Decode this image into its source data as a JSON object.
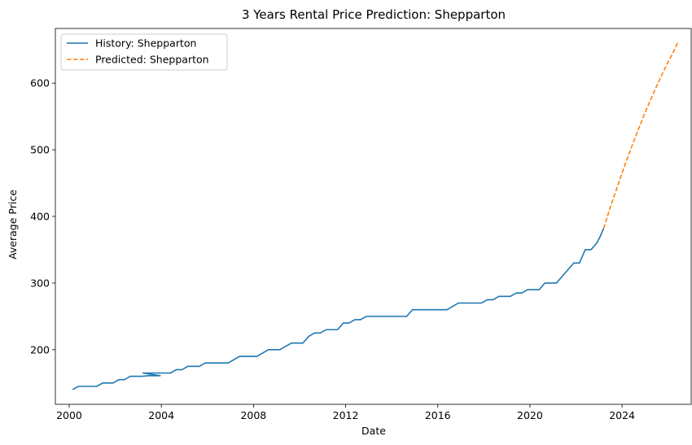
{
  "chart_data": {
    "type": "line",
    "title": "3 Years Rental Price Prediction: Shepparton",
    "xlabel": "Date",
    "ylabel": "Average Price",
    "x_type": "year",
    "xlim": [
      1999.4,
      2027.0
    ],
    "ylim": [
      118,
      682
    ],
    "xticks": [
      2000,
      2004,
      2008,
      2012,
      2016,
      2020,
      2024
    ],
    "yticks": [
      200,
      300,
      400,
      500,
      600
    ],
    "grid": false,
    "legend_position": "top-left",
    "series": [
      {
        "name": "History: Shepparton",
        "color": "#1f77b4",
        "dash": "solid",
        "points": [
          [
            2000.15,
            140
          ],
          [
            2000.4,
            145
          ],
          [
            2001.2,
            145
          ],
          [
            2001.45,
            150
          ],
          [
            2001.9,
            150
          ],
          [
            2002.15,
            155
          ],
          [
            2002.4,
            155
          ],
          [
            2002.65,
            160
          ],
          [
            2003.15,
            160
          ],
          [
            2003.45,
            161
          ],
          [
            2003.95,
            161
          ],
          [
            2003.2,
            165
          ],
          [
            2004.4,
            165
          ],
          [
            2004.65,
            170
          ],
          [
            2004.9,
            170
          ],
          [
            2005.15,
            175
          ],
          [
            2005.65,
            175
          ],
          [
            2005.9,
            180
          ],
          [
            2006.9,
            180
          ],
          [
            2007.15,
            185
          ],
          [
            2007.4,
            190
          ],
          [
            2008.15,
            190
          ],
          [
            2008.65,
            200
          ],
          [
            2009.15,
            200
          ],
          [
            2009.4,
            205
          ],
          [
            2009.65,
            210
          ],
          [
            2010.15,
            210
          ],
          [
            2010.4,
            220
          ],
          [
            2010.65,
            225
          ],
          [
            2010.9,
            225
          ],
          [
            2011.15,
            230
          ],
          [
            2011.65,
            230
          ],
          [
            2011.9,
            240
          ],
          [
            2012.15,
            240
          ],
          [
            2012.4,
            245
          ],
          [
            2012.65,
            245
          ],
          [
            2012.9,
            250
          ],
          [
            2014.65,
            250
          ],
          [
            2014.9,
            260
          ],
          [
            2016.4,
            260
          ],
          [
            2016.65,
            265
          ],
          [
            2016.9,
            270
          ],
          [
            2017.9,
            270
          ],
          [
            2018.15,
            275
          ],
          [
            2018.4,
            275
          ],
          [
            2018.65,
            280
          ],
          [
            2019.15,
            280
          ],
          [
            2019.4,
            285
          ],
          [
            2019.65,
            285
          ],
          [
            2019.9,
            290
          ],
          [
            2020.4,
            290
          ],
          [
            2020.65,
            300
          ],
          [
            2021.15,
            300
          ],
          [
            2021.4,
            310
          ],
          [
            2021.9,
            330
          ],
          [
            2022.15,
            330
          ],
          [
            2022.4,
            350
          ],
          [
            2022.65,
            350
          ],
          [
            2022.9,
            360
          ],
          [
            2023.05,
            370
          ],
          [
            2023.2,
            382
          ]
        ]
      },
      {
        "name": "Predicted: Shepparton",
        "color": "#ff7f0e",
        "dash": "dashed",
        "points": [
          [
            2023.2,
            382
          ],
          [
            2023.5,
            415
          ],
          [
            2023.8,
            445
          ],
          [
            2024.1,
            475
          ],
          [
            2024.4,
            503
          ],
          [
            2024.7,
            530
          ],
          [
            2025.0,
            556
          ],
          [
            2025.3,
            580
          ],
          [
            2025.6,
            603
          ],
          [
            2025.9,
            625
          ],
          [
            2026.2,
            645
          ],
          [
            2026.45,
            663
          ]
        ]
      }
    ]
  }
}
